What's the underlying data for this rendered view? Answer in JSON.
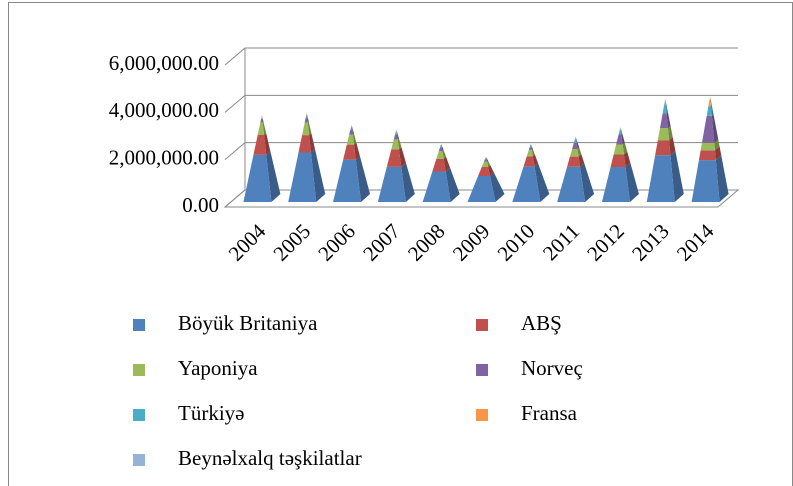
{
  "chart_data": {
    "type": "pyramid3d_stacked",
    "categories": [
      "2004",
      "2005",
      "2006",
      "2007",
      "2008",
      "2009",
      "2010",
      "2011",
      "2012",
      "2013",
      "2014"
    ],
    "series": [
      {
        "name": "Böyük Britaniya",
        "color": "#4F81BD",
        "values": [
          1900000,
          2000000,
          1700000,
          1400000,
          1200000,
          1000000,
          1400000,
          1400000,
          1400000,
          1900000,
          1700000
        ]
      },
      {
        "name": "ABŞ",
        "color": "#C0504D",
        "values": [
          800000,
          700000,
          600000,
          700000,
          500000,
          350000,
          400000,
          400000,
          500000,
          600000,
          400000
        ]
      },
      {
        "name": "Yaponiya",
        "color": "#9BBB59",
        "values": [
          500000,
          500000,
          400000,
          400000,
          300000,
          200000,
          250000,
          300000,
          400000,
          500000,
          300000
        ]
      },
      {
        "name": "Norveç",
        "color": "#8064A2",
        "values": [
          150000,
          200000,
          200000,
          200000,
          150000,
          100000,
          100000,
          250000,
          400000,
          600000,
          1100000
        ]
      },
      {
        "name": "Türkiyə",
        "color": "#4BACC6",
        "values": [
          50000,
          100000,
          100000,
          100000,
          100000,
          50000,
          100000,
          150000,
          200000,
          400000,
          400000
        ]
      },
      {
        "name": "Fransa",
        "color": "#F79646",
        "values": [
          50000,
          50000,
          50000,
          50000,
          30000,
          30000,
          30000,
          50000,
          50000,
          100000,
          300000
        ]
      },
      {
        "name": "Beynəlxalq təşkilatlar",
        "color": "#95B3D7",
        "values": [
          50000,
          50000,
          50000,
          50000,
          20000,
          20000,
          20000,
          50000,
          50000,
          100000,
          100000
        ]
      }
    ],
    "ylim": [
      0,
      6000000
    ],
    "yticks": [
      {
        "value": 0,
        "label": "0.00"
      },
      {
        "value": 2000000,
        "label": "2,000,000.00"
      },
      {
        "value": 4000000,
        "label": "4,000,000.00"
      },
      {
        "value": 6000000,
        "label": "6,000,000.00"
      }
    ],
    "grid": true,
    "legend": "bottom"
  }
}
